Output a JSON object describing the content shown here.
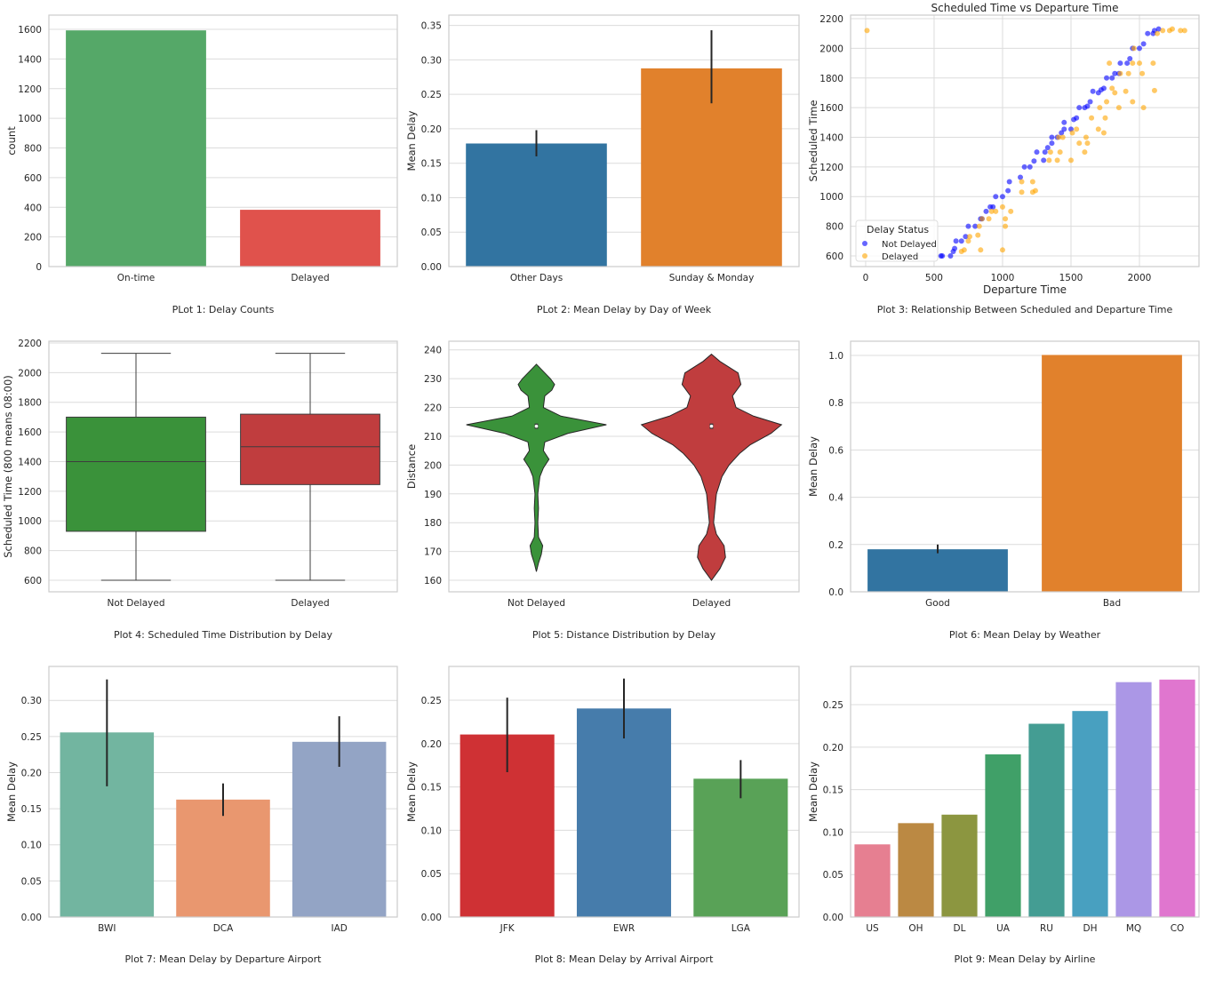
{
  "chart_data": [
    {
      "id": "p1",
      "type": "bar",
      "caption": "PLot 1: Delay Counts",
      "xlabel": "",
      "ylabel": "count",
      "categories": [
        "On-time",
        "Delayed"
      ],
      "values": [
        1590,
        380
      ],
      "colors": [
        "#55a868",
        "#e0524c"
      ],
      "ylim": [
        0,
        1696
      ],
      "yticks": [
        0,
        200,
        400,
        600,
        800,
        1000,
        1200,
        1400,
        1600
      ],
      "grid": true
    },
    {
      "id": "p2",
      "type": "bar",
      "caption": "PLot 2: Mean Delay by Day of Week",
      "ylabel": "Mean Delay",
      "categories": [
        "Other Days",
        "Sunday & Monday"
      ],
      "values": [
        0.178,
        0.287
      ],
      "errors": [
        [
          0.16,
          0.198
        ],
        [
          0.237,
          0.343
        ]
      ],
      "colors": [
        "#3274a1",
        "#e1812c"
      ],
      "ylim": [
        0,
        0.365
      ],
      "yticks": [
        "0.00",
        "0.05",
        "0.10",
        "0.15",
        "0.20",
        "0.25",
        "0.30",
        "0.35"
      ],
      "grid": true
    },
    {
      "id": "p3",
      "type": "scatter",
      "title": "Scheduled Time vs Departure Time",
      "caption": "Plot 3: Relationship Between Scheduled and Departure Time",
      "xlabel": "Departure Time",
      "ylabel": "Scheduled Time",
      "xlim": [
        -110,
        2435
      ],
      "ylim": [
        528,
        2224
      ],
      "xticks": [
        0,
        500,
        1000,
        1500,
        2000
      ],
      "yticks": [
        600,
        800,
        1000,
        1200,
        1400,
        1600,
        1800,
        2000,
        2200
      ],
      "legend": {
        "title": "Delay Status",
        "placement": "lower-left"
      },
      "series": [
        {
          "name": "Not Delayed",
          "color": "#0000ff",
          "points": [
            [
              560,
              600
            ],
            [
              550,
              600
            ],
            [
              620,
              600
            ],
            [
              640,
              630
            ],
            [
              650,
              650
            ],
            [
              660,
              700
            ],
            [
              700,
              700
            ],
            [
              730,
              730
            ],
            [
              750,
              800
            ],
            [
              800,
              800
            ],
            [
              840,
              850
            ],
            [
              850,
              850
            ],
            [
              880,
              900
            ],
            [
              910,
              930
            ],
            [
              930,
              930
            ],
            [
              950,
              1000
            ],
            [
              1000,
              1000
            ],
            [
              1040,
              1040
            ],
            [
              1050,
              1100
            ],
            [
              1130,
              1130
            ],
            [
              1160,
              1200
            ],
            [
              1200,
              1200
            ],
            [
              1230,
              1240
            ],
            [
              1250,
              1300
            ],
            [
              1300,
              1245
            ],
            [
              1310,
              1300
            ],
            [
              1330,
              1330
            ],
            [
              1360,
              1360
            ],
            [
              1360,
              1400
            ],
            [
              1400,
              1400
            ],
            [
              1430,
              1430
            ],
            [
              1450,
              1455
            ],
            [
              1450,
              1500
            ],
            [
              1500,
              1455
            ],
            [
              1520,
              1520
            ],
            [
              1540,
              1530
            ],
            [
              1560,
              1600
            ],
            [
              1600,
              1600
            ],
            [
              1620,
              1610
            ],
            [
              1640,
              1640
            ],
            [
              1660,
              1710
            ],
            [
              1700,
              1700
            ],
            [
              1720,
              1720
            ],
            [
              1740,
              1730
            ],
            [
              1760,
              1800
            ],
            [
              1800,
              1800
            ],
            [
              1820,
              1830
            ],
            [
              1850,
              1830
            ],
            [
              1860,
              1900
            ],
            [
              1910,
              1900
            ],
            [
              1930,
              1930
            ],
            [
              1950,
              2000
            ],
            [
              2000,
              2000
            ],
            [
              2030,
              2030
            ],
            [
              2060,
              2100
            ],
            [
              2100,
              2100
            ],
            [
              2110,
              2120
            ],
            [
              2140,
              2130
            ]
          ]
        },
        {
          "name": "Delayed",
          "color": "#ffa500",
          "points": [
            [
              10,
              2120
            ],
            [
              700,
              630
            ],
            [
              720,
              640
            ],
            [
              750,
              700
            ],
            [
              760,
              730
            ],
            [
              820,
              740
            ],
            [
              840,
              640
            ],
            [
              830,
              800
            ],
            [
              850,
              850
            ],
            [
              900,
              850
            ],
            [
              920,
              900
            ],
            [
              950,
              900
            ],
            [
              1000,
              640
            ],
            [
              1000,
              930
            ],
            [
              1020,
              800
            ],
            [
              1020,
              850
            ],
            [
              1060,
              900
            ],
            [
              1140,
              1030
            ],
            [
              1140,
              1100
            ],
            [
              1220,
              1100
            ],
            [
              1220,
              1030
            ],
            [
              1240,
              1040
            ],
            [
              1340,
              1245
            ],
            [
              1350,
              1300
            ],
            [
              1400,
              1245
            ],
            [
              1420,
              1300
            ],
            [
              1410,
              1400
            ],
            [
              1440,
              1400
            ],
            [
              1500,
              1245
            ],
            [
              1510,
              1430
            ],
            [
              1540,
              1455
            ],
            [
              1560,
              1360
            ],
            [
              1600,
              1300
            ],
            [
              1610,
              1400
            ],
            [
              1620,
              1360
            ],
            [
              1650,
              1530
            ],
            [
              1700,
              1455
            ],
            [
              1710,
              1600
            ],
            [
              1740,
              1430
            ],
            [
              1750,
              1530
            ],
            [
              1760,
              1640
            ],
            [
              1800,
              1730
            ],
            [
              1820,
              1700
            ],
            [
              1850,
              1600
            ],
            [
              1860,
              1830
            ],
            [
              1900,
              1710
            ],
            [
              1920,
              1830
            ],
            [
              1950,
              1900
            ],
            [
              1950,
              1640
            ],
            [
              2000,
              1900
            ],
            [
              2020,
              1830
            ],
            [
              2030,
              1600
            ],
            [
              2100,
              1900
            ],
            [
              2110,
              1715
            ],
            [
              2130,
              2100
            ],
            [
              2170,
              2120
            ],
            [
              2220,
              2120
            ],
            [
              2240,
              2130
            ],
            [
              2300,
              2120
            ],
            [
              2330,
              2120
            ],
            [
              1960,
              2000
            ],
            [
              1780,
              1900
            ]
          ]
        }
      ]
    },
    {
      "id": "p4",
      "type": "box",
      "caption": "Plot 4: Scheduled Time Distribution by Delay",
      "ylabel": "Scheduled Time (800 means 08:00)",
      "categories": [
        "Not Delayed",
        "Delayed"
      ],
      "colors": [
        "#3a923a",
        "#c03d3e"
      ],
      "boxes": [
        {
          "min": 600,
          "q1": 930,
          "median": 1400,
          "q3": 1700,
          "max": 2130
        },
        {
          "min": 600,
          "q1": 1245,
          "median": 1500,
          "q3": 1720,
          "max": 2130
        }
      ],
      "ylim": [
        522,
        2212
      ],
      "yticks": [
        600,
        800,
        1000,
        1200,
        1400,
        1600,
        1800,
        2000,
        2200
      ],
      "grid": true
    },
    {
      "id": "p5",
      "type": "violin",
      "caption": "Plot 5: Distance Distribution by Delay",
      "ylabel": "Distance",
      "categories": [
        "Not Delayed",
        "Delayed"
      ],
      "colors": [
        "#3a923a",
        "#c03d3e"
      ],
      "medians": [
        213.5,
        213.5
      ],
      "densities": [
        [
          [
            235,
            0
          ],
          [
            233,
            0.08
          ],
          [
            230,
            0.2
          ],
          [
            228,
            0.26
          ],
          [
            226,
            0.22
          ],
          [
            224,
            0.12
          ],
          [
            220,
            0.1
          ],
          [
            217,
            0.35
          ],
          [
            214,
            1.0
          ],
          [
            211,
            0.45
          ],
          [
            208,
            0.12
          ],
          [
            205,
            0.1
          ],
          [
            202,
            0.18
          ],
          [
            199,
            0.1
          ],
          [
            196,
            0.05
          ],
          [
            190,
            0.02
          ],
          [
            185,
            0.03
          ],
          [
            180,
            0.02
          ],
          [
            175,
            0.03
          ],
          [
            172,
            0.09
          ],
          [
            169,
            0.07
          ],
          [
            166,
            0.03
          ],
          [
            163,
            0
          ]
        ],
        [
          [
            238.5,
            0
          ],
          [
            236,
            0.12
          ],
          [
            232,
            0.38
          ],
          [
            228,
            0.42
          ],
          [
            224,
            0.3
          ],
          [
            220,
            0.35
          ],
          [
            217,
            0.6
          ],
          [
            214,
            1.0
          ],
          [
            211,
            0.85
          ],
          [
            207,
            0.55
          ],
          [
            204,
            0.4
          ],
          [
            200,
            0.25
          ],
          [
            196,
            0.15
          ],
          [
            190,
            0.07
          ],
          [
            185,
            0.05
          ],
          [
            180,
            0.03
          ],
          [
            176,
            0.07
          ],
          [
            172,
            0.18
          ],
          [
            168,
            0.2
          ],
          [
            164,
            0.12
          ],
          [
            160,
            0
          ]
        ]
      ],
      "ylim": [
        156,
        243
      ],
      "yticks": [
        160,
        170,
        180,
        190,
        200,
        210,
        220,
        230,
        240
      ],
      "grid": true
    },
    {
      "id": "p6",
      "type": "bar",
      "caption": "Plot 6: Mean Delay by Weather",
      "ylabel": "Mean Delay",
      "categories": [
        "Good",
        "Bad"
      ],
      "values": [
        0.178,
        1.0
      ],
      "errors": [
        [
          0.163,
          0.2
        ],
        null
      ],
      "colors": [
        "#3274a1",
        "#e1812c"
      ],
      "ylim": [
        0,
        1.06
      ],
      "yticks": [
        "0.0",
        "0.2",
        "0.4",
        "0.6",
        "0.8",
        "1.0"
      ],
      "grid": true
    },
    {
      "id": "p7",
      "type": "bar",
      "caption": "Plot 7: Mean Delay by Departure Airport",
      "ylabel": "Mean Delay",
      "categories": [
        "BWI",
        "DCA",
        "IAD"
      ],
      "values": [
        0.255,
        0.162,
        0.242
      ],
      "errors": [
        [
          0.181,
          0.329
        ],
        [
          0.14,
          0.185
        ],
        [
          0.208,
          0.278
        ]
      ],
      "colors": [
        "#72b5a0",
        "#e9976f",
        "#93a4c5"
      ],
      "ylim": [
        0,
        0.347
      ],
      "yticks": [
        "0.00",
        "0.05",
        "0.10",
        "0.15",
        "0.20",
        "0.25",
        "0.30"
      ],
      "grid": true
    },
    {
      "id": "p8",
      "type": "bar",
      "caption": "Plot 8: Mean Delay by Arrival Airport",
      "ylabel": "Mean Delay",
      "categories": [
        "JFK",
        "EWR",
        "LGA"
      ],
      "values": [
        0.21,
        0.24,
        0.159
      ],
      "errors": [
        [
          0.167,
          0.253
        ],
        [
          0.206,
          0.275
        ],
        [
          0.137,
          0.181
        ]
      ],
      "colors": [
        "#cf3134",
        "#467cab",
        "#59a257"
      ],
      "ylim": [
        0,
        0.289
      ],
      "yticks": [
        "0.00",
        "0.05",
        "0.10",
        "0.15",
        "0.20",
        "0.25"
      ],
      "grid": true
    },
    {
      "id": "p9",
      "type": "bar",
      "caption": "Plot 9: Mean Delay by Airline",
      "ylabel": "Mean Delay",
      "categories": [
        "US",
        "OH",
        "DL",
        "UA",
        "RU",
        "DH",
        "MQ",
        "CO"
      ],
      "values": [
        0.085,
        0.11,
        0.12,
        0.191,
        0.227,
        0.242,
        0.276,
        0.279
      ],
      "colors": [
        "#e67f91",
        "#bb8943",
        "#8c9640",
        "#40a068",
        "#449d93",
        "#48a0c0",
        "#ab97e6",
        "#e076cf"
      ],
      "ylim": [
        0,
        0.295
      ],
      "yticks": [
        "0.00",
        "0.05",
        "0.10",
        "0.15",
        "0.20",
        "0.25"
      ],
      "grid": true
    }
  ]
}
